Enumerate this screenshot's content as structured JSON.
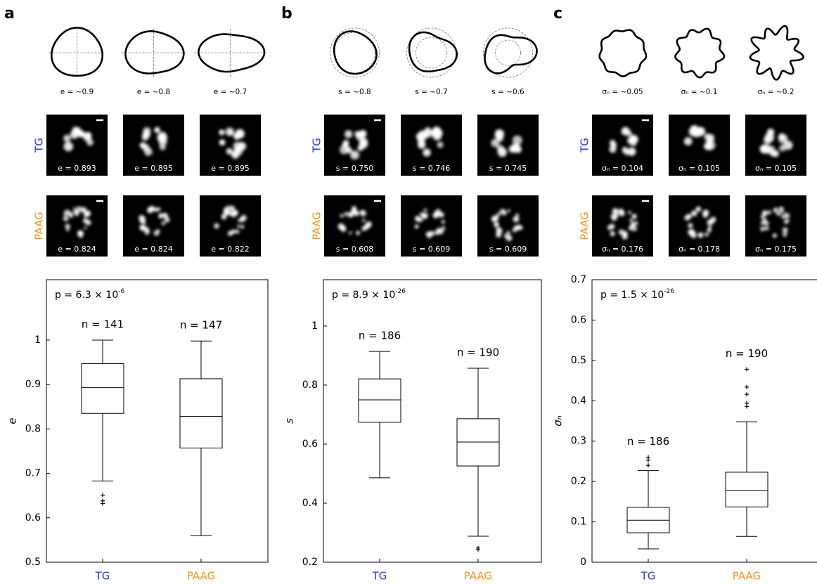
{
  "chart_data": [
    {
      "type": "box",
      "ylabel": "e",
      "annotation": {
        "base": "p = 6.3 × 10",
        "exponent": "-6"
      },
      "categories": [
        "TG",
        "PAAG"
      ],
      "category_colors": [
        "#2b35e8",
        "#f7941d"
      ],
      "n_labels": [
        "n = 141",
        "n = 147"
      ],
      "whisker_low": [
        0.683,
        0.56
      ],
      "q1": [
        0.835,
        0.757
      ],
      "median": [
        0.893,
        0.828
      ],
      "q3": [
        0.947,
        0.913
      ],
      "whisker_high": [
        1.0,
        0.998
      ],
      "outliers": [
        [
          0.651,
          0.638,
          0.632
        ],
        []
      ],
      "ylim": [
        0.5,
        1.136
      ],
      "yticks": [
        0.5,
        0.6,
        0.7,
        0.8,
        0.9,
        1
      ]
    },
    {
      "type": "box",
      "ylabel": "s",
      "annotation": {
        "base": "p = 8.9 × 10",
        "exponent": "-26"
      },
      "categories": [
        "TG",
        "PAAG"
      ],
      "category_colors": [
        "#2b35e8",
        "#f7941d"
      ],
      "n_labels": [
        "n = 186",
        "n = 190"
      ],
      "whisker_low": [
        0.486,
        0.288
      ],
      "q1": [
        0.674,
        0.526
      ],
      "median": [
        0.75,
        0.607
      ],
      "q3": [
        0.821,
        0.686
      ],
      "whisker_high": [
        0.914,
        0.857
      ],
      "outliers": [
        [],
        [
          0.248,
          0.243
        ]
      ],
      "ylim": [
        0.2,
        1.157
      ],
      "yticks": [
        0.2,
        0.4,
        0.6,
        0.8,
        1
      ]
    },
    {
      "type": "box",
      "ylabel": "σₙ",
      "annotation": {
        "base": "p = 1.5 × 10",
        "exponent": "-26"
      },
      "categories": [
        "TG",
        "PAAG"
      ],
      "category_colors": [
        "#2b35e8",
        "#f7941d"
      ],
      "n_labels": [
        "n = 186",
        "n = 190"
      ],
      "whisker_low": [
        0.033,
        0.064
      ],
      "q1": [
        0.073,
        0.137
      ],
      "median": [
        0.104,
        0.178
      ],
      "q3": [
        0.136,
        0.223
      ],
      "whisker_high": [
        0.227,
        0.348
      ],
      "outliers": [
        [
          0.26,
          0.253,
          0.24
        ],
        [
          0.478,
          0.434,
          0.416,
          0.394,
          0.386
        ]
      ],
      "ylim": [
        0,
        0.7
      ],
      "yticks": [
        0,
        0.1,
        0.2,
        0.3,
        0.4,
        0.5,
        0.6,
        0.7
      ]
    }
  ],
  "panels": [
    {
      "letter": "a",
      "shape_labels": [
        "e = ~0.9",
        "e = ~0.8",
        "e = ~0.7"
      ],
      "image_labels": [
        [
          "e = 0.893",
          "e = 0.895",
          "e = 0.895"
        ],
        [
          "e = 0.824",
          "e = 0.824",
          "e = 0.822"
        ]
      ]
    },
    {
      "letter": "b",
      "shape_labels": [
        "s = ~0.8",
        "s = ~0.7",
        "s = ~0.6"
      ],
      "image_labels": [
        [
          "s = 0.750",
          "s = 0.746",
          "s = 0.745"
        ],
        [
          "s = 0.608",
          "s = 0.609",
          "s = 0.609"
        ]
      ]
    },
    {
      "letter": "c",
      "shape_labels": [
        "σₙ = ~0.05",
        "σₙ = ~0.1",
        "σₙ = ~0.2"
      ],
      "image_labels": [
        [
          "σₙ = 0.104",
          "σₙ = 0.105",
          "σₙ = 0.105"
        ],
        [
          "σₙ = 0.176",
          "σₙ = 0.178",
          "σₙ = 0.175"
        ]
      ]
    }
  ]
}
